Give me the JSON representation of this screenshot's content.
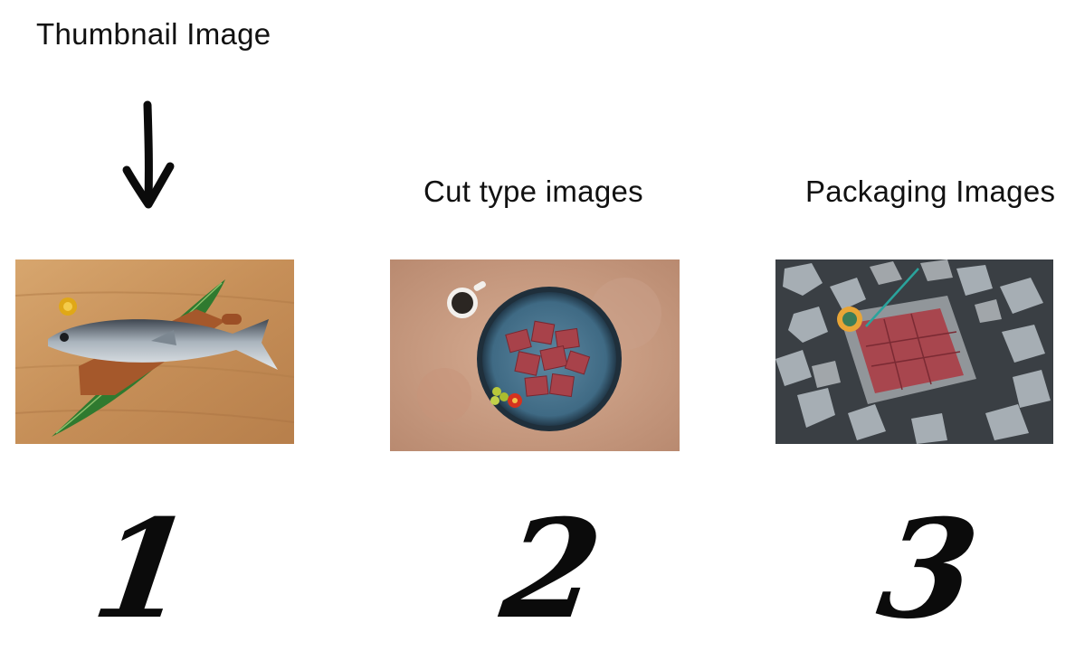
{
  "labels": {
    "thumbnail": "Thumbnail Image",
    "cut_type": "Cut type images",
    "packaging": "Packaging Images"
  },
  "images": [
    {
      "name": "whole-tuna-fish-photo"
    },
    {
      "name": "tuna-cubes-plate-photo"
    },
    {
      "name": "vacuum-pack-on-ice-photo"
    }
  ],
  "numbers": [
    "1",
    "2",
    "3"
  ],
  "icons": {
    "arrow": "arrow-down-icon"
  },
  "colors": {
    "text": "#111111",
    "wood": "#c9955e",
    "stone": "#c89e85",
    "tuna_meat": "#a8424a"
  }
}
